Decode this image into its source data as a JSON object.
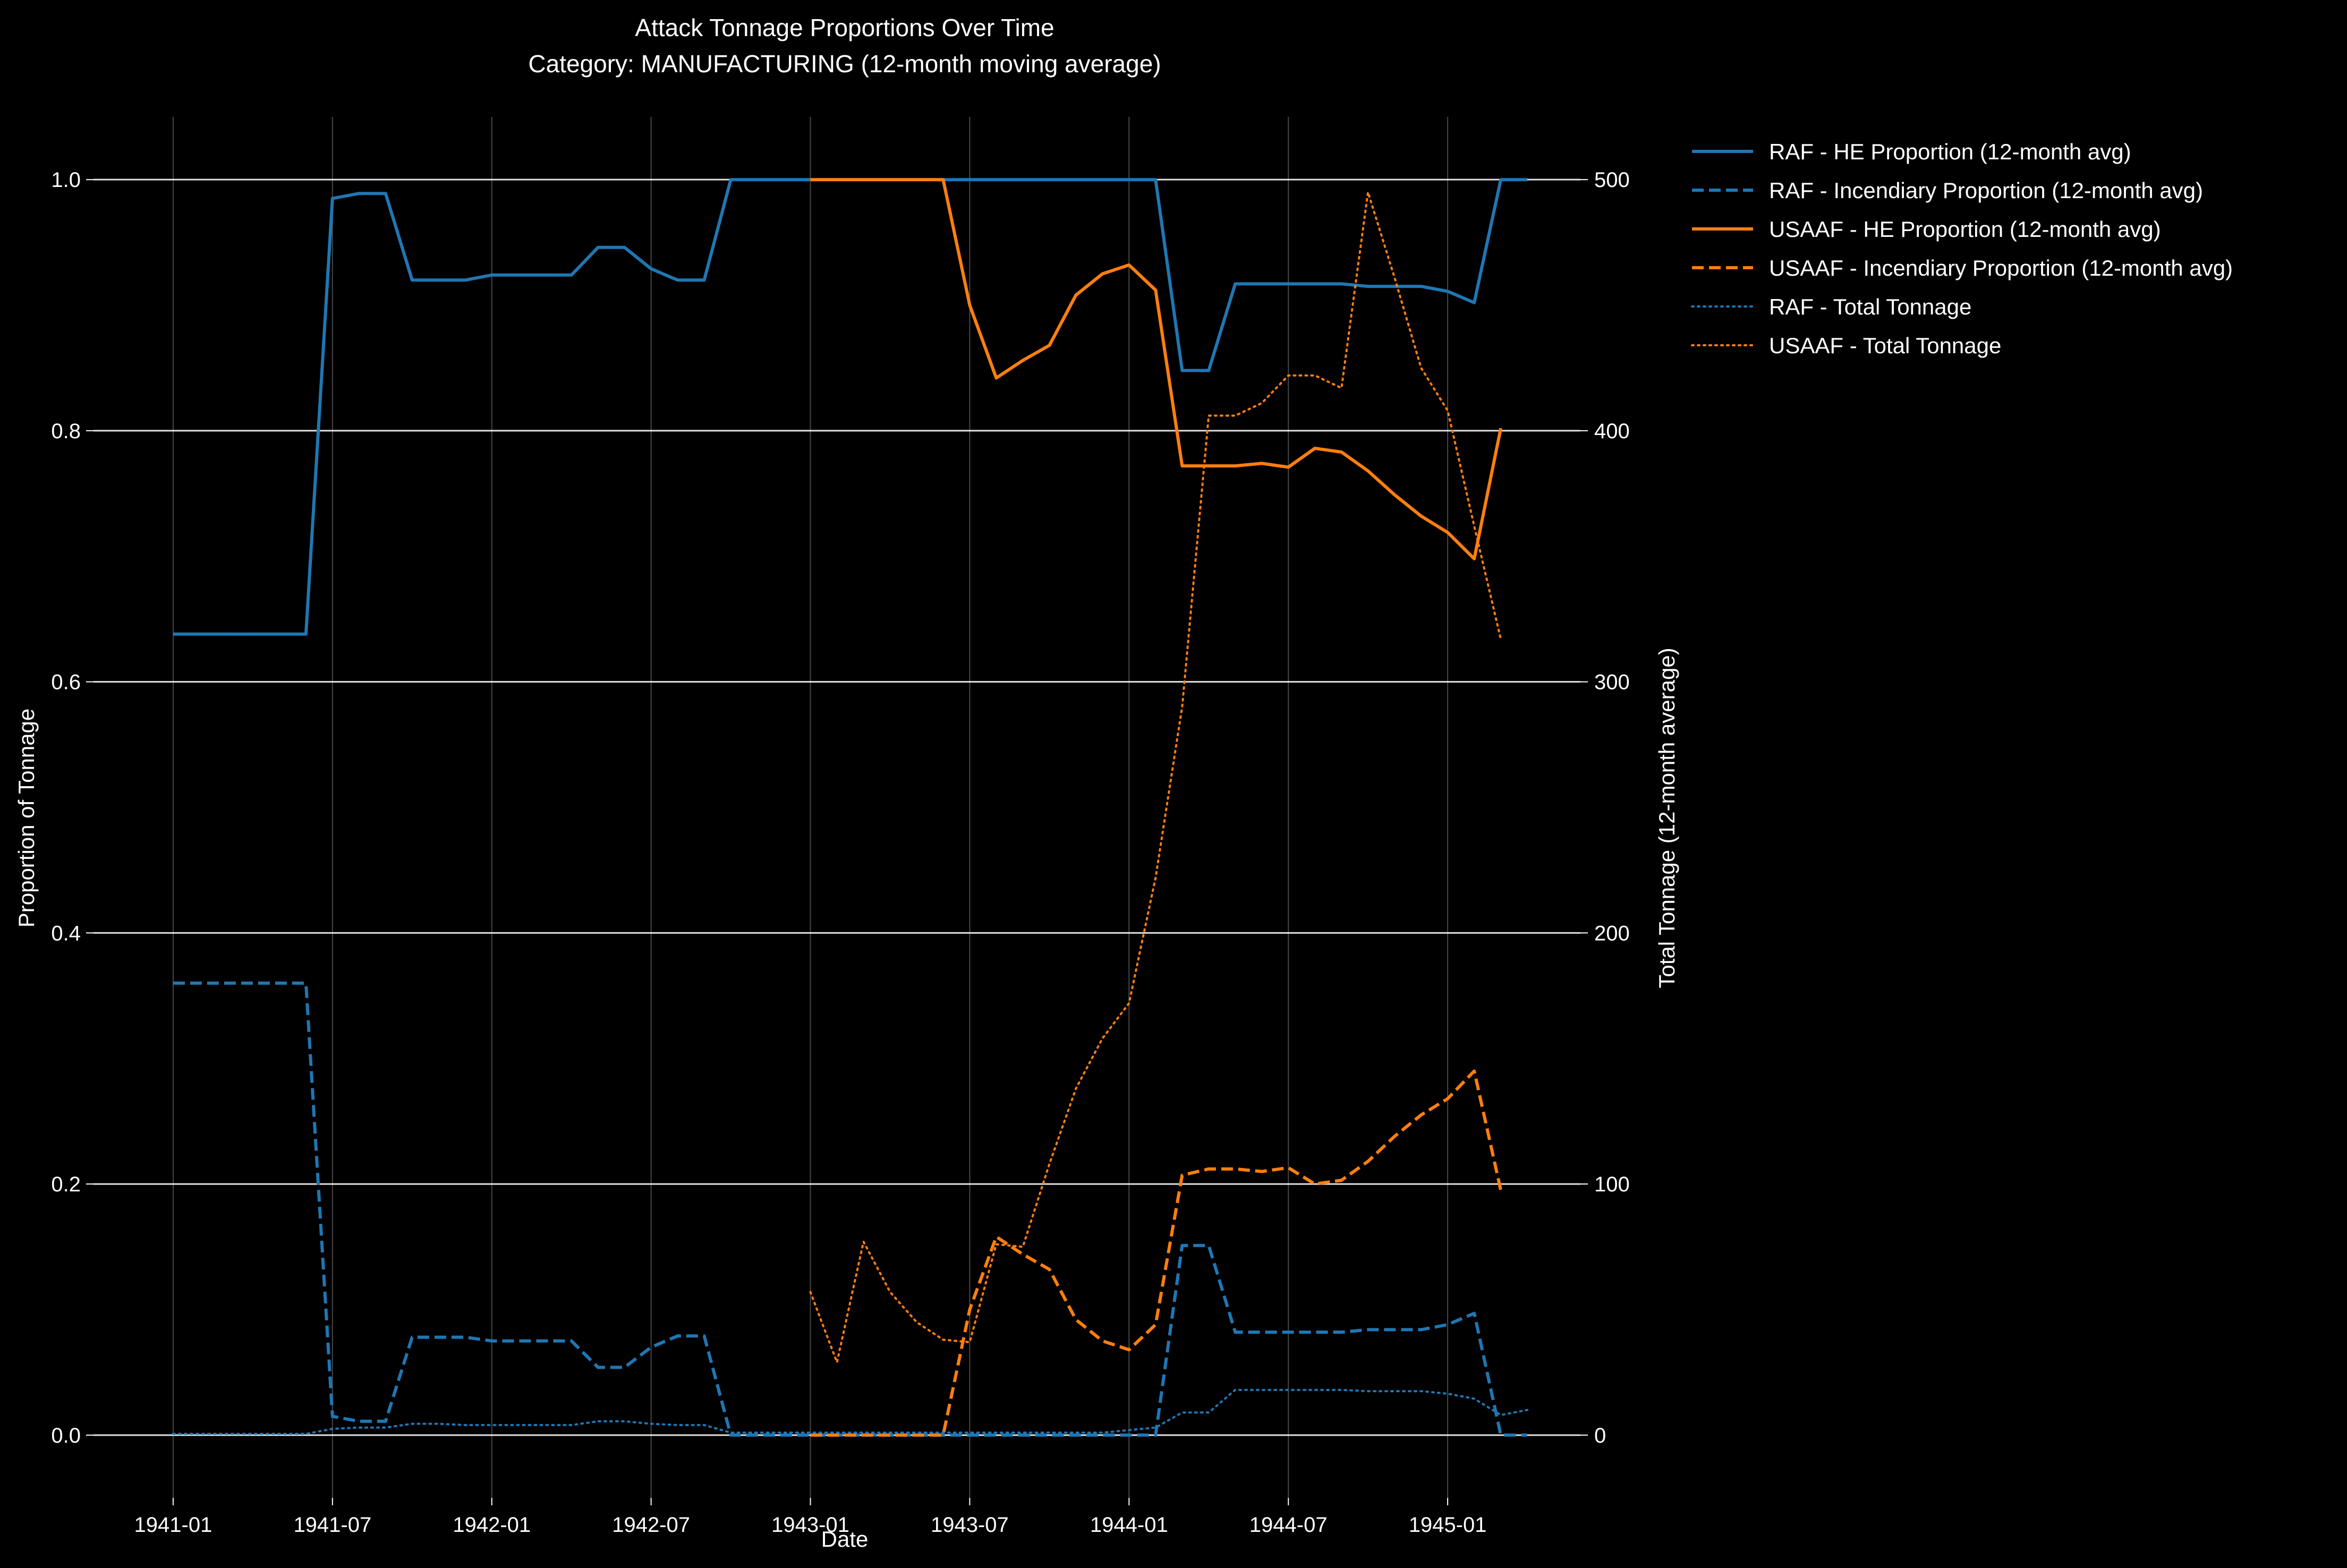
{
  "chart_data": {
    "type": "line",
    "title": "Attack Tonnage Proportions Over Time",
    "subtitle": "Category: MANUFACTURING (12-month moving average)",
    "xlabel": "Date",
    "ylabel": "Proportion of Tonnage",
    "y2label": "Total Tonnage (12-month average)",
    "x_ticks": [
      "1941-01",
      "1941-07",
      "1942-01",
      "1942-07",
      "1943-01",
      "1943-07",
      "1944-01",
      "1944-07",
      "1945-01"
    ],
    "y_ticks": [
      "0.0",
      "0.2",
      "0.4",
      "0.6",
      "0.8",
      "1.0"
    ],
    "y2_ticks": [
      "0",
      "100",
      "200",
      "300",
      "400",
      "500"
    ],
    "xlim": [
      "1940-10",
      "1945-06"
    ],
    "ylim": [
      -0.05,
      1.05
    ],
    "y2lim": [
      -25,
      525
    ],
    "grid": true,
    "legend_position": "outside-right",
    "colors": {
      "RAF": "#1f77b4",
      "USAAF": "#ff7f0e"
    },
    "series": [
      {
        "name": "RAF - HE Proportion (12-month avg)",
        "axis": "left",
        "color": "#1f77b4",
        "style": "solid",
        "x": [
          "1941-01",
          "1941-02",
          "1941-03",
          "1941-04",
          "1941-05",
          "1941-06",
          "1941-07",
          "1941-08",
          "1941-09",
          "1941-10",
          "1941-11",
          "1941-12",
          "1942-01",
          "1942-02",
          "1942-03",
          "1942-04",
          "1942-05",
          "1942-06",
          "1942-07",
          "1942-08",
          "1942-09",
          "1942-10",
          "1942-11",
          "1942-12",
          "1943-01",
          "1943-02",
          "1943-03",
          "1943-04",
          "1943-05",
          "1943-06",
          "1943-07",
          "1943-08",
          "1943-09",
          "1943-10",
          "1943-11",
          "1943-12",
          "1944-01",
          "1944-02",
          "1944-03",
          "1944-04",
          "1944-05",
          "1944-06",
          "1944-07",
          "1944-08",
          "1944-09",
          "1944-10",
          "1944-11",
          "1944-12",
          "1945-01",
          "1945-02",
          "1945-03",
          "1945-04"
        ],
        "values": [
          0.638,
          0.638,
          0.638,
          0.638,
          0.638,
          0.638,
          0.985,
          0.989,
          0.989,
          0.92,
          0.92,
          0.92,
          0.924,
          0.924,
          0.924,
          0.924,
          0.946,
          0.946,
          0.929,
          0.92,
          0.92,
          1.0,
          1.0,
          1.0,
          1.0,
          1.0,
          1.0,
          1.0,
          1.0,
          1.0,
          1.0,
          1.0,
          1.0,
          1.0,
          1.0,
          1.0,
          1.0,
          1.0,
          0.848,
          0.848,
          0.917,
          0.917,
          0.917,
          0.917,
          0.917,
          0.915,
          0.915,
          0.915,
          0.911,
          0.902,
          1.0,
          1.0
        ]
      },
      {
        "name": "RAF - Incendiary Proportion (12-month avg)",
        "axis": "left",
        "color": "#1f77b4",
        "style": "dashed",
        "x": [
          "1941-01",
          "1941-02",
          "1941-03",
          "1941-04",
          "1941-05",
          "1941-06",
          "1941-07",
          "1941-08",
          "1941-09",
          "1941-10",
          "1941-11",
          "1941-12",
          "1942-01",
          "1942-02",
          "1942-03",
          "1942-04",
          "1942-05",
          "1942-06",
          "1942-07",
          "1942-08",
          "1942-09",
          "1942-10",
          "1942-11",
          "1942-12",
          "1943-01",
          "1943-02",
          "1943-03",
          "1943-04",
          "1943-05",
          "1943-06",
          "1943-07",
          "1943-08",
          "1943-09",
          "1943-10",
          "1943-11",
          "1943-12",
          "1944-01",
          "1944-02",
          "1944-03",
          "1944-04",
          "1944-05",
          "1944-06",
          "1944-07",
          "1944-08",
          "1944-09",
          "1944-10",
          "1944-11",
          "1944-12",
          "1945-01",
          "1945-02",
          "1945-03",
          "1945-04"
        ],
        "values": [
          0.36,
          0.36,
          0.36,
          0.36,
          0.36,
          0.36,
          0.015,
          0.011,
          0.011,
          0.078,
          0.078,
          0.078,
          0.075,
          0.075,
          0.075,
          0.075,
          0.054,
          0.054,
          0.07,
          0.079,
          0.079,
          0.0,
          0.0,
          0.0,
          0.0,
          0.0,
          0.0,
          0.0,
          0.0,
          0.0,
          0.0,
          0.0,
          0.0,
          0.0,
          0.0,
          0.0,
          0.0,
          0.0,
          0.151,
          0.151,
          0.082,
          0.082,
          0.082,
          0.082,
          0.082,
          0.084,
          0.084,
          0.084,
          0.088,
          0.097,
          0.0,
          0.0
        ]
      },
      {
        "name": "USAAF - HE Proportion (12-month avg)",
        "axis": "left",
        "color": "#ff7f0e",
        "style": "solid",
        "x": [
          "1943-01",
          "1943-02",
          "1943-03",
          "1943-04",
          "1943-05",
          "1943-06",
          "1943-07",
          "1943-08",
          "1943-09",
          "1943-10",
          "1943-11",
          "1943-12",
          "1944-01",
          "1944-02",
          "1944-03",
          "1944-04",
          "1944-05",
          "1944-06",
          "1944-07",
          "1944-08",
          "1944-09",
          "1944-10",
          "1944-11",
          "1944-12",
          "1945-01",
          "1945-02",
          "1945-03"
        ],
        "values": [
          1.0,
          1.0,
          1.0,
          1.0,
          1.0,
          1.0,
          0.9,
          0.842,
          0.856,
          0.868,
          0.908,
          0.925,
          0.932,
          0.912,
          0.772,
          0.772,
          0.772,
          0.774,
          0.771,
          0.786,
          0.783,
          0.768,
          0.749,
          0.732,
          0.719,
          0.698,
          0.802
        ]
      },
      {
        "name": "USAAF - Incendiary Proportion (12-month avg)",
        "axis": "left",
        "color": "#ff7f0e",
        "style": "dashed",
        "x": [
          "1943-01",
          "1943-02",
          "1943-03",
          "1943-04",
          "1943-05",
          "1943-06",
          "1943-07",
          "1943-08",
          "1943-09",
          "1943-10",
          "1943-11",
          "1943-12",
          "1944-01",
          "1944-02",
          "1944-03",
          "1944-04",
          "1944-05",
          "1944-06",
          "1944-07",
          "1944-08",
          "1944-09",
          "1944-10",
          "1944-11",
          "1944-12",
          "1945-01",
          "1945-02",
          "1945-03"
        ],
        "values": [
          0.0,
          0.0,
          0.0,
          0.0,
          0.0,
          0.0,
          0.1,
          0.158,
          0.144,
          0.132,
          0.092,
          0.075,
          0.068,
          0.088,
          0.207,
          0.212,
          0.212,
          0.21,
          0.213,
          0.2,
          0.203,
          0.218,
          0.238,
          0.255,
          0.268,
          0.29,
          0.195
        ]
      },
      {
        "name": "RAF - Total Tonnage",
        "axis": "right",
        "color": "#1f77b4",
        "style": "dotted",
        "x": [
          "1941-01",
          "1941-02",
          "1941-03",
          "1941-04",
          "1941-05",
          "1941-06",
          "1941-07",
          "1941-08",
          "1941-09",
          "1941-10",
          "1941-11",
          "1941-12",
          "1942-01",
          "1942-02",
          "1942-03",
          "1942-04",
          "1942-05",
          "1942-06",
          "1942-07",
          "1942-08",
          "1942-09",
          "1942-10",
          "1942-11",
          "1942-12",
          "1943-01",
          "1943-02",
          "1943-03",
          "1943-04",
          "1943-05",
          "1943-06",
          "1943-07",
          "1943-08",
          "1943-09",
          "1943-10",
          "1943-11",
          "1943-12",
          "1944-01",
          "1944-02",
          "1944-03",
          "1944-04",
          "1944-05",
          "1944-06",
          "1944-07",
          "1944-08",
          "1944-09",
          "1944-10",
          "1944-11",
          "1944-12",
          "1945-01",
          "1945-02",
          "1945-03",
          "1945-04"
        ],
        "values": [
          0.5,
          0.5,
          0.5,
          0.5,
          0.5,
          0.5,
          2.5,
          3,
          3,
          4.5,
          4.5,
          4,
          4,
          4,
          4,
          4,
          5.5,
          5.5,
          4.5,
          4,
          4,
          1,
          1,
          1,
          1,
          1,
          1,
          1,
          1,
          1,
          1,
          1,
          1,
          1,
          1,
          1,
          2,
          3,
          9,
          9,
          18,
          18,
          18,
          18,
          18,
          17.5,
          17.5,
          17.5,
          16.5,
          14.5,
          8,
          10
        ]
      },
      {
        "name": "USAAF - Total Tonnage",
        "axis": "right",
        "color": "#ff7f0e",
        "style": "dotted",
        "x": [
          "1943-01",
          "1943-02",
          "1943-03",
          "1943-04",
          "1943-05",
          "1943-06",
          "1943-07",
          "1943-08",
          "1943-09",
          "1943-10",
          "1943-11",
          "1943-12",
          "1944-01",
          "1944-02",
          "1944-03",
          "1944-04",
          "1944-05",
          "1944-06",
          "1944-07",
          "1944-08",
          "1944-09",
          "1944-10",
          "1944-11",
          "1944-12",
          "1945-01",
          "1945-02",
          "1945-03"
        ],
        "values": [
          57,
          29,
          77,
          57,
          45,
          38,
          37,
          76,
          75,
          108,
          138,
          158,
          172,
          222,
          290,
          406,
          406,
          411,
          422,
          422,
          417,
          495,
          461,
          425,
          408,
          362,
          317
        ]
      }
    ]
  }
}
